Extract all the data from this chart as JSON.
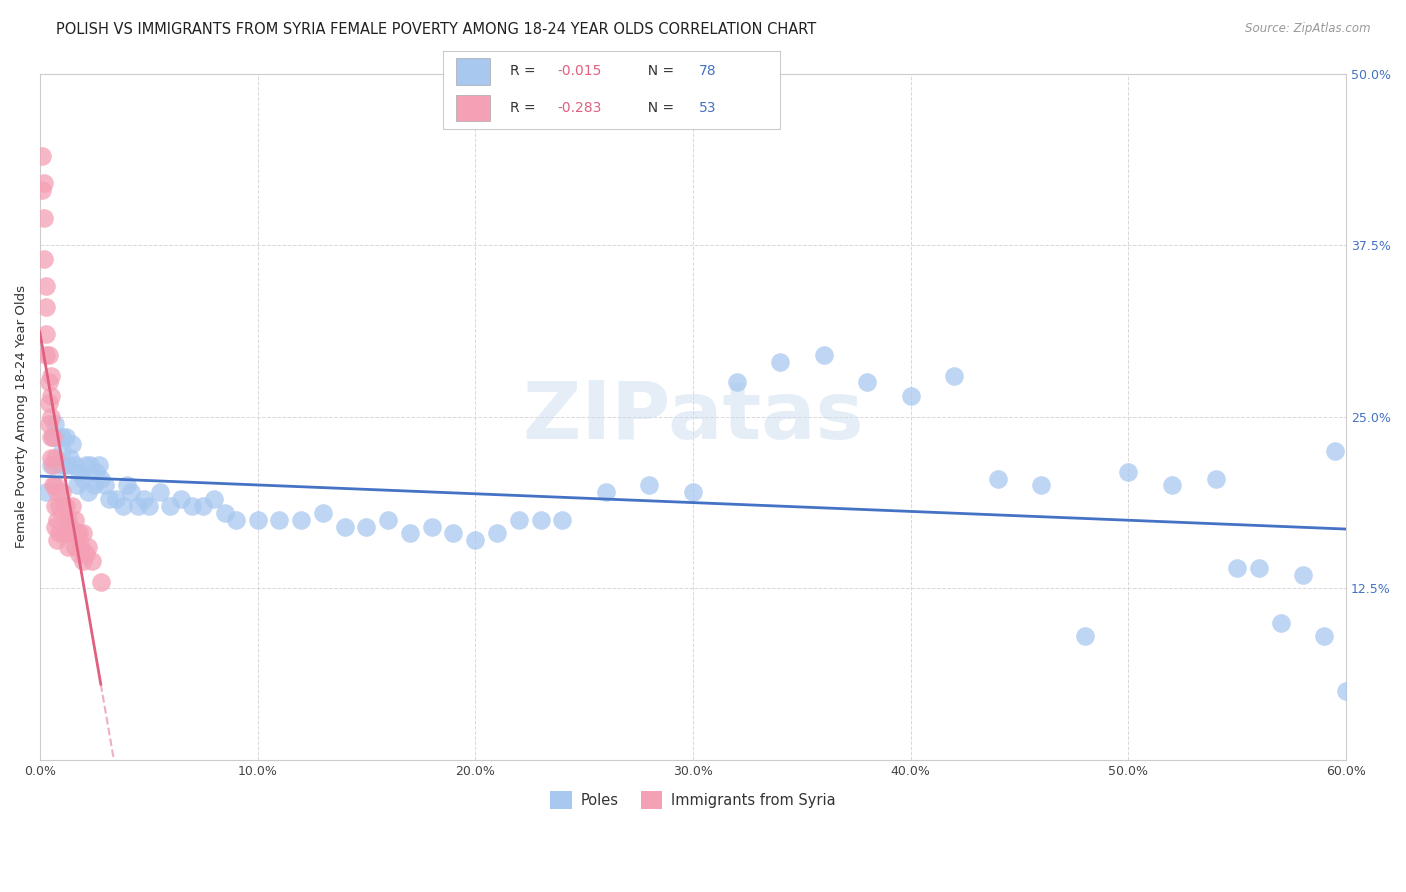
{
  "title": "POLISH VS IMMIGRANTS FROM SYRIA FEMALE POVERTY AMONG 18-24 YEAR OLDS CORRELATION CHART",
  "source": "Source: ZipAtlas.com",
  "ylabel": "Female Poverty Among 18-24 Year Olds",
  "xlim": [
    0.0,
    0.6
  ],
  "ylim": [
    0.0,
    0.5
  ],
  "xticks": [
    0.0,
    0.1,
    0.2,
    0.3,
    0.4,
    0.5,
    0.6
  ],
  "yticks": [
    0.0,
    0.125,
    0.25,
    0.375,
    0.5
  ],
  "ytick_labels": [
    "",
    "12.5%",
    "25.0%",
    "37.5%",
    "50.0%"
  ],
  "xtick_labels": [
    "0.0%",
    "10.0%",
    "20.0%",
    "30.0%",
    "40.0%",
    "50.0%",
    "60.0%"
  ],
  "r_poles": "-0.015",
  "n_poles": "78",
  "r_syria": "-0.283",
  "n_syria": "53",
  "color_poles": "#a8c8f0",
  "color_syria": "#f4a0b5",
  "color_trendline_poles": "#4472c4",
  "color_trendline_syria": "#e06080",
  "color_r": "#e06080",
  "color_n": "#4472c4",
  "color_grid": "#d8d8d8",
  "color_axis": "#cccccc",
  "color_right_tick": "#4472c4",
  "background_color": "#ffffff",
  "title_fontsize": 10.5,
  "axis_label_fontsize": 9.5,
  "tick_fontsize": 9,
  "poles_x": [
    0.003,
    0.005,
    0.006,
    0.007,
    0.008,
    0.009,
    0.01,
    0.01,
    0.011,
    0.012,
    0.013,
    0.014,
    0.015,
    0.016,
    0.017,
    0.018,
    0.02,
    0.021,
    0.022,
    0.023,
    0.025,
    0.026,
    0.027,
    0.028,
    0.03,
    0.032,
    0.035,
    0.038,
    0.04,
    0.042,
    0.045,
    0.048,
    0.05,
    0.055,
    0.06,
    0.065,
    0.07,
    0.075,
    0.08,
    0.085,
    0.09,
    0.1,
    0.11,
    0.12,
    0.13,
    0.14,
    0.15,
    0.16,
    0.17,
    0.18,
    0.19,
    0.2,
    0.21,
    0.22,
    0.23,
    0.24,
    0.26,
    0.28,
    0.3,
    0.32,
    0.34,
    0.36,
    0.38,
    0.4,
    0.42,
    0.44,
    0.46,
    0.48,
    0.5,
    0.52,
    0.54,
    0.55,
    0.56,
    0.57,
    0.58,
    0.59,
    0.595,
    0.6
  ],
  "poles_y": [
    0.195,
    0.215,
    0.235,
    0.245,
    0.235,
    0.215,
    0.225,
    0.235,
    0.215,
    0.235,
    0.215,
    0.22,
    0.23,
    0.215,
    0.2,
    0.21,
    0.205,
    0.215,
    0.195,
    0.215,
    0.2,
    0.21,
    0.215,
    0.205,
    0.2,
    0.19,
    0.19,
    0.185,
    0.2,
    0.195,
    0.185,
    0.19,
    0.185,
    0.195,
    0.185,
    0.19,
    0.185,
    0.185,
    0.19,
    0.18,
    0.175,
    0.175,
    0.175,
    0.175,
    0.18,
    0.17,
    0.17,
    0.175,
    0.165,
    0.17,
    0.165,
    0.16,
    0.165,
    0.175,
    0.175,
    0.175,
    0.195,
    0.2,
    0.195,
    0.275,
    0.29,
    0.295,
    0.275,
    0.265,
    0.28,
    0.205,
    0.2,
    0.09,
    0.21,
    0.2,
    0.205,
    0.14,
    0.14,
    0.1,
    0.135,
    0.09,
    0.225,
    0.05
  ],
  "syria_x": [
    0.001,
    0.001,
    0.002,
    0.002,
    0.002,
    0.003,
    0.003,
    0.003,
    0.003,
    0.004,
    0.004,
    0.004,
    0.004,
    0.005,
    0.005,
    0.005,
    0.005,
    0.005,
    0.006,
    0.006,
    0.006,
    0.007,
    0.007,
    0.007,
    0.007,
    0.008,
    0.008,
    0.008,
    0.009,
    0.009,
    0.01,
    0.01,
    0.011,
    0.011,
    0.012,
    0.012,
    0.013,
    0.013,
    0.014,
    0.015,
    0.015,
    0.016,
    0.016,
    0.017,
    0.018,
    0.018,
    0.019,
    0.02,
    0.02,
    0.021,
    0.022,
    0.024,
    0.028
  ],
  "syria_y": [
    0.44,
    0.415,
    0.42,
    0.395,
    0.365,
    0.345,
    0.33,
    0.31,
    0.295,
    0.295,
    0.275,
    0.26,
    0.245,
    0.28,
    0.265,
    0.25,
    0.235,
    0.22,
    0.235,
    0.215,
    0.2,
    0.22,
    0.2,
    0.185,
    0.17,
    0.195,
    0.175,
    0.16,
    0.185,
    0.165,
    0.195,
    0.18,
    0.185,
    0.165,
    0.185,
    0.165,
    0.175,
    0.155,
    0.17,
    0.185,
    0.165,
    0.175,
    0.155,
    0.165,
    0.165,
    0.15,
    0.155,
    0.165,
    0.145,
    0.15,
    0.155,
    0.145,
    0.13
  ]
}
